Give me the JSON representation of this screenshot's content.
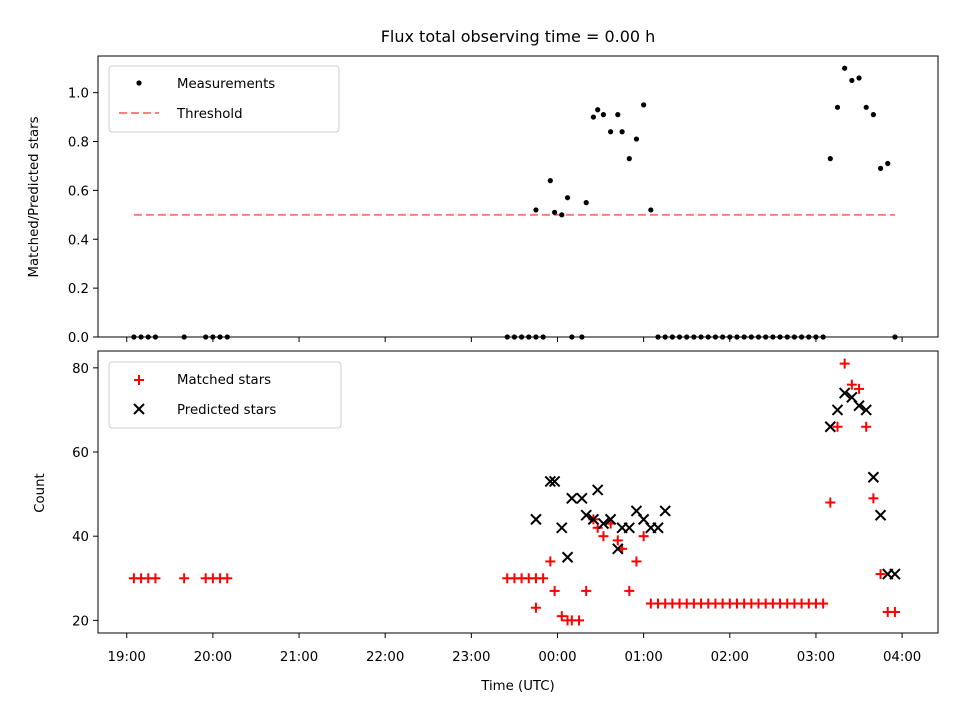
{
  "chart_data": [
    {
      "type": "scatter",
      "title": "Flux total observing time = 0.00 h",
      "xlabel": "",
      "ylabel": "Matched/Predicted stars",
      "xlim": [
        "18:40",
        "04:25"
      ],
      "ylim": [
        0,
        1.15
      ],
      "yticks": [
        0.0,
        0.2,
        0.4,
        0.6,
        0.8,
        1.0
      ],
      "legend": "top-left",
      "series": [
        {
          "name": "Measurements",
          "style": "dot",
          "color": "#000000",
          "x": [
            "19:05",
            "19:10",
            "19:15",
            "19:20",
            "19:40",
            "19:55",
            "20:00",
            "20:05",
            "20:10",
            "23:25",
            "23:30",
            "23:35",
            "23:40",
            "23:45",
            "23:50",
            "23:45",
            "23:55",
            "23:58",
            "00:03",
            "00:07",
            "00:10",
            "00:17",
            "00:20",
            "00:25",
            "00:28",
            "00:32",
            "00:37",
            "00:42",
            "00:45",
            "00:50",
            "00:55",
            "01:00",
            "01:05",
            "01:10",
            "01:15",
            "01:20",
            "01:25",
            "01:30",
            "01:35",
            "01:40",
            "01:45",
            "01:50",
            "01:55",
            "02:00",
            "02:05",
            "02:10",
            "02:15",
            "02:20",
            "02:25",
            "02:30",
            "02:35",
            "02:40",
            "02:45",
            "02:50",
            "02:55",
            "03:00",
            "03:05",
            "03:10",
            "03:15",
            "03:20",
            "03:25",
            "03:30",
            "03:35",
            "03:40",
            "03:45",
            "03:50",
            "03:55"
          ],
          "y": [
            0,
            0,
            0,
            0,
            0,
            0,
            0,
            0,
            0,
            0,
            0,
            0,
            0,
            0,
            0,
            0.52,
            0.64,
            0.51,
            0.5,
            0.57,
            0,
            0,
            0.55,
            0.9,
            0.93,
            0.91,
            0.84,
            0.91,
            0.84,
            0.73,
            0.81,
            0.95,
            0.52,
            0,
            0,
            0,
            0,
            0,
            0,
            0,
            0,
            0,
            0,
            0,
            0,
            0,
            0,
            0,
            0,
            0,
            0,
            0,
            0,
            0,
            0,
            0,
            0,
            0.73,
            0.94,
            1.1,
            1.05,
            1.06,
            0.94,
            0.91,
            0.69,
            0.71,
            0
          ]
        },
        {
          "name": "Threshold",
          "style": "dashed-line",
          "color": "#ff7f7f",
          "x": [
            "19:05",
            "03:55"
          ],
          "y": [
            0.5,
            0.5
          ]
        }
      ]
    },
    {
      "type": "scatter",
      "title": "",
      "xlabel": "Time (UTC)",
      "ylabel": "Count",
      "xlim": [
        "18:40",
        "04:25"
      ],
      "ylim": [
        17,
        84
      ],
      "xticks": [
        "19:00",
        "20:00",
        "21:00",
        "22:00",
        "23:00",
        "00:00",
        "01:00",
        "02:00",
        "03:00",
        "04:00"
      ],
      "yticks": [
        20,
        40,
        60,
        80
      ],
      "legend": "top-left",
      "series": [
        {
          "name": "Matched stars",
          "style": "plus",
          "color": "#ff0000",
          "x": [
            "19:05",
            "19:10",
            "19:15",
            "19:20",
            "19:40",
            "19:55",
            "20:00",
            "20:05",
            "20:10",
            "23:25",
            "23:30",
            "23:35",
            "23:40",
            "23:45",
            "23:50",
            "23:45",
            "23:55",
            "23:58",
            "00:03",
            "00:07",
            "00:10",
            "00:15",
            "00:20",
            "00:25",
            "00:28",
            "00:32",
            "00:37",
            "00:42",
            "00:45",
            "00:50",
            "00:55",
            "01:00",
            "01:05",
            "01:10",
            "01:15",
            "01:20",
            "01:25",
            "01:30",
            "01:35",
            "01:40",
            "01:45",
            "01:50",
            "01:55",
            "02:00",
            "02:05",
            "02:10",
            "02:15",
            "02:20",
            "02:25",
            "02:30",
            "02:35",
            "02:40",
            "02:45",
            "02:50",
            "02:55",
            "03:00",
            "03:05",
            "03:10",
            "03:15",
            "03:20",
            "03:25",
            "03:30",
            "03:35",
            "03:40",
            "03:45",
            "03:50",
            "03:55"
          ],
          "y": [
            30,
            30,
            30,
            30,
            30,
            30,
            30,
            30,
            30,
            30,
            30,
            30,
            30,
            30,
            30,
            23,
            34,
            27,
            21,
            20,
            20,
            20,
            27,
            44,
            42,
            40,
            43,
            39,
            37,
            27,
            34,
            40,
            24,
            24,
            24,
            24,
            24,
            24,
            24,
            24,
            24,
            24,
            24,
            24,
            24,
            24,
            24,
            24,
            24,
            24,
            24,
            24,
            24,
            24,
            24,
            24,
            24,
            48,
            66,
            81,
            76,
            75,
            66,
            49,
            31,
            22,
            22
          ]
        },
        {
          "name": "Predicted stars",
          "style": "x",
          "color": "#000000",
          "x": [
            "23:45",
            "23:55",
            "23:58",
            "00:03",
            "00:07",
            "00:10",
            "00:17",
            "00:20",
            "00:25",
            "00:28",
            "00:32",
            "00:37",
            "00:42",
            "00:45",
            "00:50",
            "00:55",
            "01:00",
            "01:05",
            "01:10",
            "01:15",
            "03:10",
            "03:15",
            "03:20",
            "03:25",
            "03:30",
            "03:35",
            "03:40",
            "03:45",
            "03:50",
            "03:55"
          ],
          "y": [
            44,
            53,
            53,
            42,
            35,
            49,
            49,
            45,
            44,
            51,
            43,
            44,
            37,
            42,
            42,
            46,
            44,
            42,
            42,
            46,
            66,
            70,
            74,
            73,
            71,
            70,
            54,
            45,
            31,
            31
          ]
        }
      ]
    }
  ]
}
